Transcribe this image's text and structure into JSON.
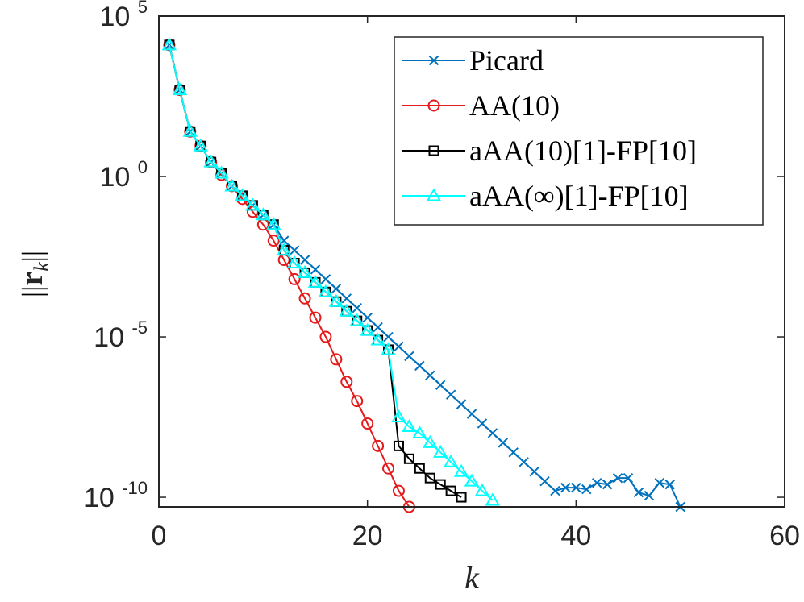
{
  "chart_data": {
    "type": "line",
    "title": "",
    "xlabel": "k",
    "ylabel": "||r_k||",
    "ylabel_parts": {
      "open": "||",
      "vec": "r",
      "sub": "k",
      "close": "||"
    },
    "xlim": [
      0,
      60
    ],
    "ylim_log10": [
      -10.3,
      5
    ],
    "yscale": "log",
    "xticks": [
      {
        "value": 0,
        "label": "0"
      },
      {
        "value": 20,
        "label": "20"
      },
      {
        "value": 40,
        "label": "40"
      },
      {
        "value": 60,
        "label": "60"
      }
    ],
    "yticks": [
      {
        "log10": 5,
        "base": "10",
        "exp": "5"
      },
      {
        "log10": 0,
        "base": "10",
        "exp": "0"
      },
      {
        "log10": -5,
        "base": "10",
        "exp": "-5"
      },
      {
        "log10": -10,
        "base": "10",
        "exp": "-10"
      }
    ],
    "grid": false,
    "legend_position": "top-right",
    "series": [
      {
        "name": "Picard",
        "color": "#0072bd",
        "marker": "x",
        "x": [
          1,
          2,
          3,
          4,
          5,
          6,
          7,
          8,
          9,
          10,
          11,
          12,
          13,
          14,
          15,
          16,
          17,
          18,
          19,
          20,
          21,
          22,
          23,
          24,
          25,
          26,
          27,
          28,
          29,
          30,
          31,
          32,
          33,
          34,
          35,
          36,
          37,
          38,
          39,
          40,
          41,
          42,
          43,
          44,
          45,
          46,
          47,
          48,
          49,
          50
        ],
        "log10_values": [
          4.1,
          2.7,
          1.4,
          0.95,
          0.45,
          0.1,
          -0.3,
          -0.6,
          -0.9,
          -1.2,
          -1.5,
          -2.0,
          -2.3,
          -2.6,
          -2.9,
          -3.2,
          -3.5,
          -3.8,
          -4.1,
          -4.4,
          -4.7,
          -5.0,
          -5.3,
          -5.6,
          -5.9,
          -6.2,
          -6.5,
          -6.8,
          -7.1,
          -7.4,
          -7.7,
          -8.0,
          -8.3,
          -8.6,
          -8.9,
          -9.2,
          -9.5,
          -9.8,
          -9.7,
          -9.7,
          -9.75,
          -9.55,
          -9.6,
          -9.4,
          -9.4,
          -9.85,
          -9.95,
          -9.55,
          -9.6,
          -10.3
        ]
      },
      {
        "name": "AA(10)",
        "color": "#e51a1a",
        "marker": "circle",
        "x": [
          1,
          2,
          3,
          4,
          5,
          6,
          7,
          8,
          9,
          10,
          11,
          12,
          13,
          14,
          15,
          16,
          17,
          18,
          19,
          20,
          21,
          22,
          23,
          24
        ],
        "log10_values": [
          4.1,
          2.7,
          1.4,
          0.95,
          0.45,
          0.05,
          -0.3,
          -0.7,
          -1.1,
          -1.5,
          -2.0,
          -2.6,
          -3.2,
          -3.8,
          -4.4,
          -5.0,
          -5.7,
          -6.4,
          -7.0,
          -7.7,
          -8.4,
          -9.1,
          -9.8,
          -10.3
        ]
      },
      {
        "name": "aAA(10)[1]-FP[10]",
        "color": "#000000",
        "marker": "square",
        "x": [
          1,
          2,
          3,
          4,
          5,
          6,
          7,
          8,
          9,
          10,
          11,
          12,
          13,
          14,
          15,
          16,
          17,
          18,
          19,
          20,
          21,
          22,
          23,
          24,
          25,
          26,
          27,
          28,
          29
        ],
        "log10_values": [
          4.1,
          2.7,
          1.4,
          0.95,
          0.45,
          0.1,
          -0.3,
          -0.6,
          -0.9,
          -1.2,
          -1.5,
          -2.3,
          -2.7,
          -3.0,
          -3.3,
          -3.6,
          -3.9,
          -4.2,
          -4.5,
          -4.8,
          -5.1,
          -5.4,
          -8.4,
          -8.8,
          -9.1,
          -9.4,
          -9.6,
          -9.8,
          -10.0
        ]
      },
      {
        "name": "aAA(∞)[1]-FP[10]",
        "color": "#00ffff",
        "marker": "triangle",
        "x": [
          1,
          2,
          3,
          4,
          5,
          6,
          7,
          8,
          9,
          10,
          11,
          12,
          13,
          14,
          15,
          16,
          17,
          18,
          19,
          20,
          21,
          22,
          23,
          24,
          25,
          26,
          27,
          28,
          29,
          30,
          31,
          32
        ],
        "log10_values": [
          4.1,
          2.7,
          1.4,
          0.95,
          0.45,
          0.1,
          -0.3,
          -0.6,
          -0.9,
          -1.2,
          -1.5,
          -2.3,
          -2.7,
          -3.0,
          -3.3,
          -3.6,
          -3.9,
          -4.2,
          -4.5,
          -4.8,
          -5.1,
          -5.4,
          -7.5,
          -7.8,
          -8.0,
          -8.3,
          -8.6,
          -8.9,
          -9.2,
          -9.5,
          -9.8,
          -10.1
        ]
      }
    ]
  }
}
